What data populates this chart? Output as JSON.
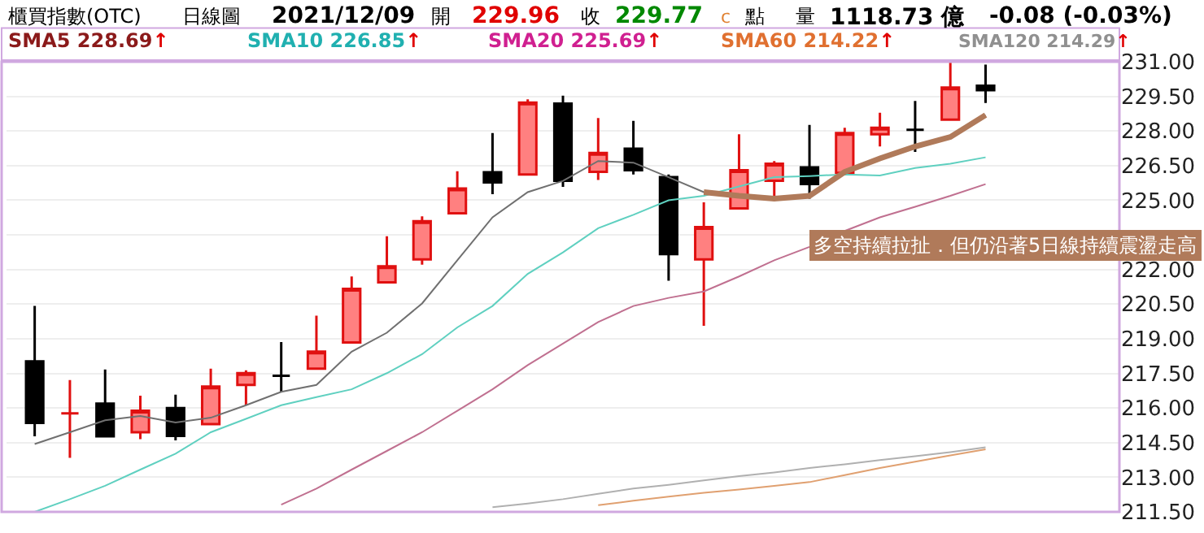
{
  "chart_data": {
    "type": "candlestick",
    "title": "櫃買指數(OTC)",
    "categories": [
      null,
      null,
      null,
      null,
      null,
      null,
      null,
      null,
      null,
      null,
      null,
      null,
      null,
      null,
      null,
      null,
      null,
      null,
      null,
      null,
      null,
      null,
      null,
      null,
      null,
      null,
      null,
      null
    ],
    "ohlc": [
      [
        218.02,
        220.42,
        214.77,
        215.35
      ],
      [
        215.77,
        217.21,
        213.84,
        215.77
      ],
      [
        216.19,
        217.67,
        214.77,
        214.77
      ],
      [
        214.95,
        216.53,
        214.65,
        215.88
      ],
      [
        216.0,
        216.58,
        214.6,
        214.79
      ],
      [
        215.3,
        217.7,
        215.3,
        216.93
      ],
      [
        217.0,
        217.63,
        216.12,
        217.51
      ],
      [
        217.4,
        218.86,
        216.7,
        217.4
      ],
      [
        217.7,
        220.0,
        217.7,
        218.44
      ],
      [
        218.84,
        221.7,
        218.84,
        221.16
      ],
      [
        221.44,
        223.44,
        221.44,
        222.14
      ],
      [
        222.44,
        224.3,
        222.21,
        224.09
      ],
      [
        224.44,
        226.26,
        224.44,
        225.51
      ],
      [
        226.21,
        227.91,
        225.26,
        225.77
      ],
      [
        226.12,
        229.37,
        226.12,
        229.23
      ],
      [
        229.19,
        229.53,
        225.58,
        225.84
      ],
      [
        226.23,
        228.56,
        225.88,
        227.05
      ],
      [
        227.23,
        228.44,
        226.12,
        226.3
      ],
      [
        226.0,
        226.12,
        221.51,
        222.67
      ],
      [
        222.44,
        224.91,
        219.56,
        223.84
      ],
      [
        224.65,
        227.86,
        224.65,
        226.3
      ],
      [
        225.84,
        226.7,
        225.07,
        226.58
      ],
      [
        226.42,
        228.26,
        225.07,
        225.7
      ],
      [
        226.19,
        228.14,
        226.19,
        227.91
      ],
      [
        227.86,
        228.79,
        227.33,
        228.14
      ],
      [
        228.05,
        229.3,
        227.09,
        228.05
      ],
      [
        228.49,
        231.0,
        228.49,
        229.88
      ],
      [
        229.96,
        230.88,
        229.21,
        229.77
      ]
    ],
    "series": [
      {
        "type": "line",
        "color": "#707070",
        "values": [
          214.44,
          214.95,
          215.47,
          215.65,
          215.37,
          215.58,
          216.12,
          216.7,
          217.0,
          218.44,
          219.26,
          220.53,
          222.4,
          224.26,
          225.35,
          225.84,
          226.7,
          226.63,
          226.0,
          225.35,
          225.19,
          225.07,
          225.19,
          226.23,
          226.81,
          227.33,
          227.74,
          228.69
        ]
      },
      {
        "type": "line",
        "color": "#5fd0c0",
        "values": [
          211.5,
          212.05,
          212.63,
          213.33,
          214.02,
          214.95,
          215.53,
          216.12,
          216.47,
          216.81,
          217.51,
          218.33,
          219.49,
          220.42,
          221.81,
          222.74,
          223.79,
          224.37,
          225.0,
          225.19,
          225.6,
          226.0,
          226.05,
          226.12,
          226.07,
          226.4,
          226.58,
          226.86
        ]
      },
      {
        "type": "line",
        "color": "#c07090",
        "values": [
          null,
          null,
          null,
          null,
          null,
          null,
          null,
          211.81,
          212.51,
          213.33,
          214.14,
          214.95,
          215.88,
          216.81,
          217.86,
          218.79,
          219.72,
          220.42,
          220.77,
          221.05,
          221.7,
          222.4,
          222.98,
          223.67,
          224.26,
          224.72,
          225.19,
          225.7
        ]
      },
      {
        "type": "line",
        "color": "#e0a070",
        "values": [
          null,
          null,
          null,
          null,
          null,
          null,
          null,
          null,
          null,
          null,
          null,
          null,
          null,
          null,
          null,
          null,
          211.79,
          211.98,
          212.16,
          212.33,
          212.47,
          212.63,
          212.79,
          213.09,
          213.4,
          213.67,
          213.95,
          214.21
        ]
      },
      {
        "type": "line",
        "color": "#b0b0b0",
        "values": [
          null,
          null,
          null,
          null,
          null,
          null,
          null,
          null,
          null,
          null,
          null,
          null,
          null,
          211.7,
          211.86,
          212.05,
          212.28,
          212.51,
          212.67,
          212.86,
          213.05,
          213.21,
          213.4,
          213.56,
          213.74,
          213.91,
          214.09,
          214.3
        ]
      },
      {
        "type": "line",
        "color": "#b07a5a",
        "values": [
          null,
          null,
          null,
          null,
          null,
          null,
          null,
          null,
          null,
          null,
          null,
          null,
          null,
          null,
          null,
          null,
          null,
          null,
          null,
          225.35,
          225.19,
          225.07,
          225.19,
          226.23,
          226.81,
          227.33,
          227.74,
          228.69
        ]
      }
    ],
    "ylim": [
      211.5,
      231.0
    ],
    "yticks": [
      {
        "value": 211.5,
        "label": "211.50"
      },
      {
        "value": 213,
        "label": "213.00"
      },
      {
        "value": 214.5,
        "label": "214.50"
      },
      {
        "value": 216,
        "label": "216.00"
      },
      {
        "value": 217.5,
        "label": "217.50"
      },
      {
        "value": 219,
        "label": "219.00"
      },
      {
        "value": 220.5,
        "label": "220.50"
      },
      {
        "value": 222,
        "label": "222.00"
      },
      {
        "value": 223.5,
        "label": null
      },
      {
        "value": 225,
        "label": "225.00"
      },
      {
        "value": 226.5,
        "label": "226.50"
      },
      {
        "value": 228,
        "label": "228.00"
      },
      {
        "value": 229.5,
        "label": "229.50"
      },
      {
        "value": 231,
        "label": "231.00"
      }
    ],
    "grid": "y",
    "annotations": [
      "日線圖",
      "2021/12/09",
      "開",
      "229.96",
      "收",
      "229.77",
      "c",
      "點",
      "量",
      "1118.73 億",
      "-0.08 (-0.03%)",
      "SMA5 228.69↑",
      "SMA10 226.85↑",
      "SMA20 225.69↑",
      "SMA60 214.22↑",
      "SMA120 214.29↑",
      "多空持續拉扯．但仍沿著5日線持續震盪走高"
    ]
  }
}
